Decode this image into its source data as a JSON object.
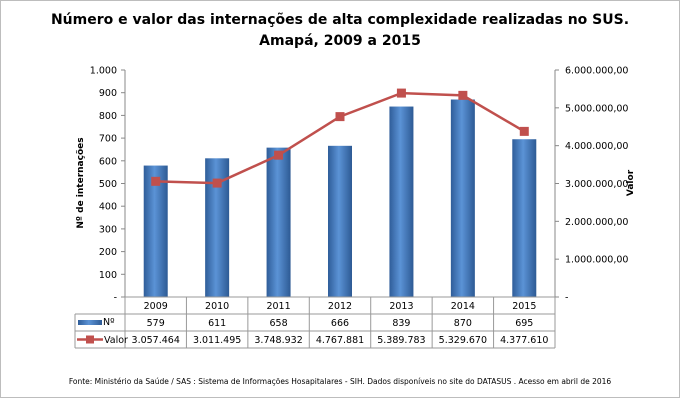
{
  "chart_data": {
    "type": "bar+line",
    "title": "Número e valor das internações de alta complexidade realizadas no SUS.",
    "subtitle": "Amapá, 2009 a 2015",
    "categories": [
      "2009",
      "2010",
      "2011",
      "2012",
      "2013",
      "2014",
      "2015"
    ],
    "series": [
      {
        "name": "Nº",
        "type": "bar",
        "axis": "left",
        "color": "#4f81bd",
        "values": [
          579,
          611,
          658,
          666,
          839,
          870,
          695
        ],
        "labels": [
          "579",
          "611",
          "658",
          "666",
          "839",
          "870",
          "695"
        ]
      },
      {
        "name": "Valor",
        "type": "line",
        "axis": "right",
        "color": "#c0504d",
        "values": [
          3057464,
          3011495,
          3748932,
          4767881,
          5389783,
          5329670,
          4377610
        ],
        "labels": [
          "3.057.464",
          "3.011.495",
          "3.748.932",
          "4.767.881",
          "5.389.783",
          "5.329.670",
          "4.377.610"
        ]
      }
    ],
    "ylabel_left": "Nº de internações",
    "ylabel_right": "Valor",
    "ylim_left": [
      0,
      1000
    ],
    "ylim_right": [
      0,
      6000000
    ],
    "yticks_left": [
      "-",
      "100",
      "200",
      "300",
      "400",
      "500",
      "600",
      "700",
      "800",
      "900",
      "1.000"
    ],
    "yticks_right": [
      "-",
      "1.000.000,00",
      "2.000.000,00",
      "3.000.000,00",
      "4.000.000,00",
      "5.000.000,00",
      "6.000.000,00"
    ],
    "grid": false,
    "legend": "data-table",
    "source": "Fonte:  Ministério da Saúde  / SAS : Sistema de Informações Hosapitalares - SIH. Dados disponíveis no site do DATASUS . Acesso em abril de 2016"
  }
}
